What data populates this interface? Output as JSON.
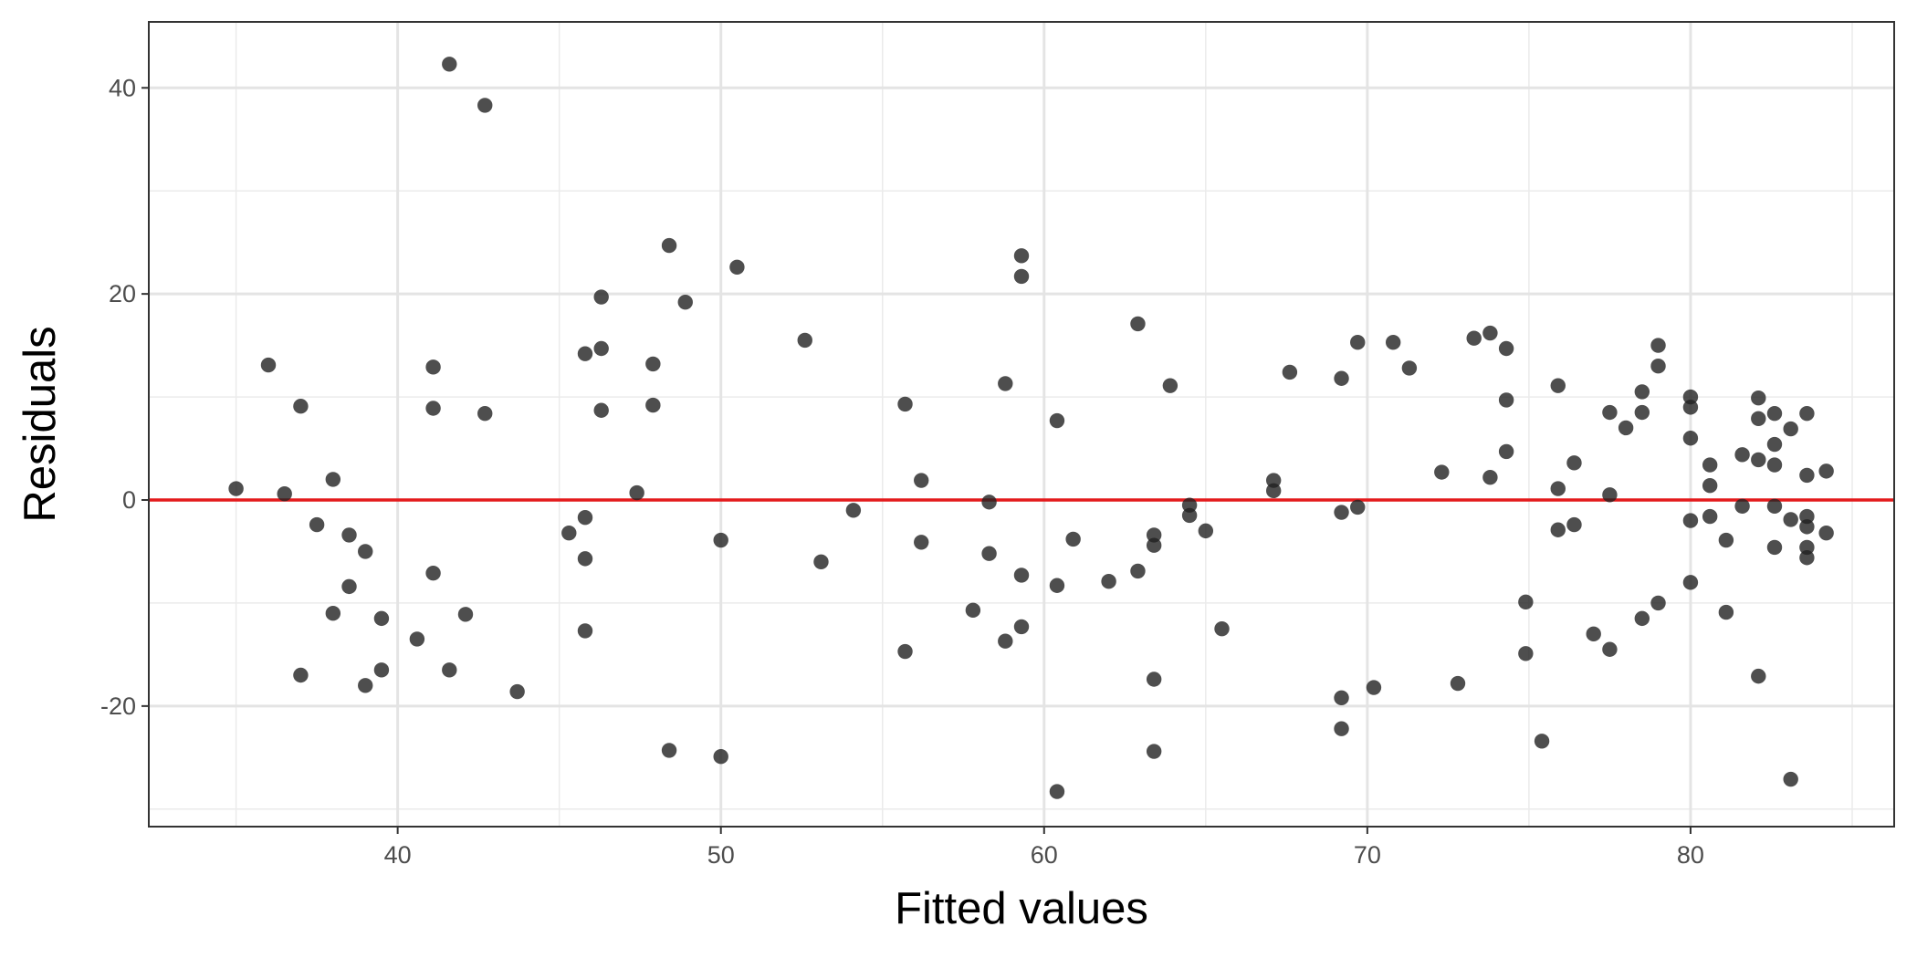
{
  "chart_data": {
    "type": "scatter",
    "title": "",
    "xlabel": "Fitted values",
    "ylabel": "Residuals",
    "xlim": [
      32.3,
      86.3
    ],
    "ylim": [
      -31.7,
      46.4
    ],
    "x_ticks": [
      40,
      50,
      60,
      70,
      80
    ],
    "y_ticks": [
      -20,
      0,
      20,
      40
    ],
    "x_tick_labels": [
      "40",
      "50",
      "60",
      "70",
      "80"
    ],
    "y_tick_labels": [
      "-20",
      "0",
      "20",
      "40"
    ],
    "grid": true,
    "reference_line": {
      "y": 0,
      "color": "#e41a1c"
    },
    "point_color": "#222222",
    "point_opacity": 0.8,
    "points": [
      [
        35.0,
        1.1
      ],
      [
        36.0,
        13.1
      ],
      [
        36.5,
        0.6
      ],
      [
        37.0,
        9.1
      ],
      [
        37.0,
        -17.0
      ],
      [
        37.5,
        -2.4
      ],
      [
        38.0,
        2.0
      ],
      [
        38.0,
        -11.0
      ],
      [
        38.5,
        -3.4
      ],
      [
        38.5,
        -8.4
      ],
      [
        39.0,
        -5.0
      ],
      [
        39.0,
        -18.0
      ],
      [
        39.5,
        -11.5
      ],
      [
        39.5,
        -16.5
      ],
      [
        40.6,
        -13.5
      ],
      [
        41.1,
        12.9
      ],
      [
        41.1,
        8.9
      ],
      [
        41.1,
        -7.1
      ],
      [
        41.6,
        42.3
      ],
      [
        41.6,
        -16.5
      ],
      [
        42.1,
        -11.1
      ],
      [
        42.7,
        38.3
      ],
      [
        42.7,
        8.4
      ],
      [
        43.7,
        -18.6
      ],
      [
        45.3,
        -3.2
      ],
      [
        45.8,
        14.2
      ],
      [
        45.8,
        -1.7
      ],
      [
        45.8,
        -5.7
      ],
      [
        45.8,
        -12.7
      ],
      [
        46.3,
        19.7
      ],
      [
        46.3,
        14.7
      ],
      [
        46.3,
        8.7
      ],
      [
        47.4,
        0.7
      ],
      [
        47.9,
        13.2
      ],
      [
        47.9,
        9.2
      ],
      [
        48.4,
        24.7
      ],
      [
        48.4,
        -24.3
      ],
      [
        48.9,
        19.2
      ],
      [
        50.0,
        -3.9
      ],
      [
        50.0,
        -24.9
      ],
      [
        50.5,
        22.6
      ],
      [
        52.6,
        15.5
      ],
      [
        53.1,
        -6.0
      ],
      [
        54.1,
        -1.0
      ],
      [
        55.7,
        9.3
      ],
      [
        55.7,
        -14.7
      ],
      [
        56.2,
        1.9
      ],
      [
        56.2,
        -4.1
      ],
      [
        57.8,
        -10.7
      ],
      [
        58.3,
        -0.2
      ],
      [
        58.3,
        -5.2
      ],
      [
        58.8,
        11.3
      ],
      [
        58.8,
        -13.7
      ],
      [
        59.3,
        23.7
      ],
      [
        59.3,
        21.7
      ],
      [
        59.3,
        -7.3
      ],
      [
        59.3,
        -12.3
      ],
      [
        60.4,
        7.7
      ],
      [
        60.4,
        -8.3
      ],
      [
        60.4,
        -28.3
      ],
      [
        60.9,
        -3.8
      ],
      [
        62.0,
        -7.9
      ],
      [
        62.9,
        17.1
      ],
      [
        62.9,
        -6.9
      ],
      [
        63.4,
        -3.4
      ],
      [
        63.4,
        -4.4
      ],
      [
        63.4,
        -17.4
      ],
      [
        63.4,
        -24.4
      ],
      [
        63.9,
        11.1
      ],
      [
        64.5,
        -0.5
      ],
      [
        64.5,
        -1.5
      ],
      [
        65.0,
        -3.0
      ],
      [
        65.5,
        -12.5
      ],
      [
        67.1,
        1.9
      ],
      [
        67.1,
        0.9
      ],
      [
        67.6,
        12.4
      ],
      [
        69.2,
        11.8
      ],
      [
        69.2,
        -1.2
      ],
      [
        69.2,
        -19.2
      ],
      [
        69.2,
        -22.2
      ],
      [
        69.7,
        15.3
      ],
      [
        69.7,
        -0.7
      ],
      [
        70.2,
        -18.2
      ],
      [
        70.8,
        15.3
      ],
      [
        71.3,
        12.8
      ],
      [
        72.3,
        2.7
      ],
      [
        72.8,
        -17.8
      ],
      [
        73.3,
        15.7
      ],
      [
        73.8,
        16.2
      ],
      [
        73.8,
        2.2
      ],
      [
        74.3,
        14.7
      ],
      [
        74.3,
        9.7
      ],
      [
        74.3,
        4.7
      ],
      [
        74.9,
        -9.9
      ],
      [
        74.9,
        -14.9
      ],
      [
        75.4,
        -23.4
      ],
      [
        75.9,
        11.1
      ],
      [
        75.9,
        1.1
      ],
      [
        75.9,
        -2.9
      ],
      [
        76.4,
        3.6
      ],
      [
        76.4,
        -2.4
      ],
      [
        77.0,
        -13.0
      ],
      [
        77.5,
        8.5
      ],
      [
        77.5,
        0.5
      ],
      [
        77.5,
        -14.5
      ],
      [
        78.0,
        7.0
      ],
      [
        78.5,
        10.5
      ],
      [
        78.5,
        8.5
      ],
      [
        78.5,
        -11.5
      ],
      [
        79.0,
        15.0
      ],
      [
        79.0,
        13.0
      ],
      [
        79.0,
        -10.0
      ],
      [
        80.0,
        10.0
      ],
      [
        80.0,
        9.0
      ],
      [
        80.0,
        6.0
      ],
      [
        80.0,
        -2.0
      ],
      [
        80.0,
        -8.0
      ],
      [
        80.6,
        3.4
      ],
      [
        80.6,
        1.4
      ],
      [
        80.6,
        -1.6
      ],
      [
        81.1,
        -3.9
      ],
      [
        81.1,
        -10.9
      ],
      [
        81.6,
        4.4
      ],
      [
        81.6,
        -0.6
      ],
      [
        82.1,
        9.9
      ],
      [
        82.1,
        7.9
      ],
      [
        82.1,
        3.9
      ],
      [
        82.1,
        -17.1
      ],
      [
        82.6,
        8.4
      ],
      [
        82.6,
        5.4
      ],
      [
        82.6,
        3.4
      ],
      [
        82.6,
        -0.6
      ],
      [
        82.6,
        -4.6
      ],
      [
        83.1,
        6.9
      ],
      [
        83.1,
        -1.9
      ],
      [
        83.1,
        -27.1
      ],
      [
        83.6,
        8.4
      ],
      [
        83.6,
        2.4
      ],
      [
        83.6,
        -1.6
      ],
      [
        83.6,
        -2.6
      ],
      [
        83.6,
        -4.6
      ],
      [
        83.6,
        -5.6
      ],
      [
        84.2,
        2.8
      ],
      [
        84.2,
        -3.2
      ]
    ]
  }
}
